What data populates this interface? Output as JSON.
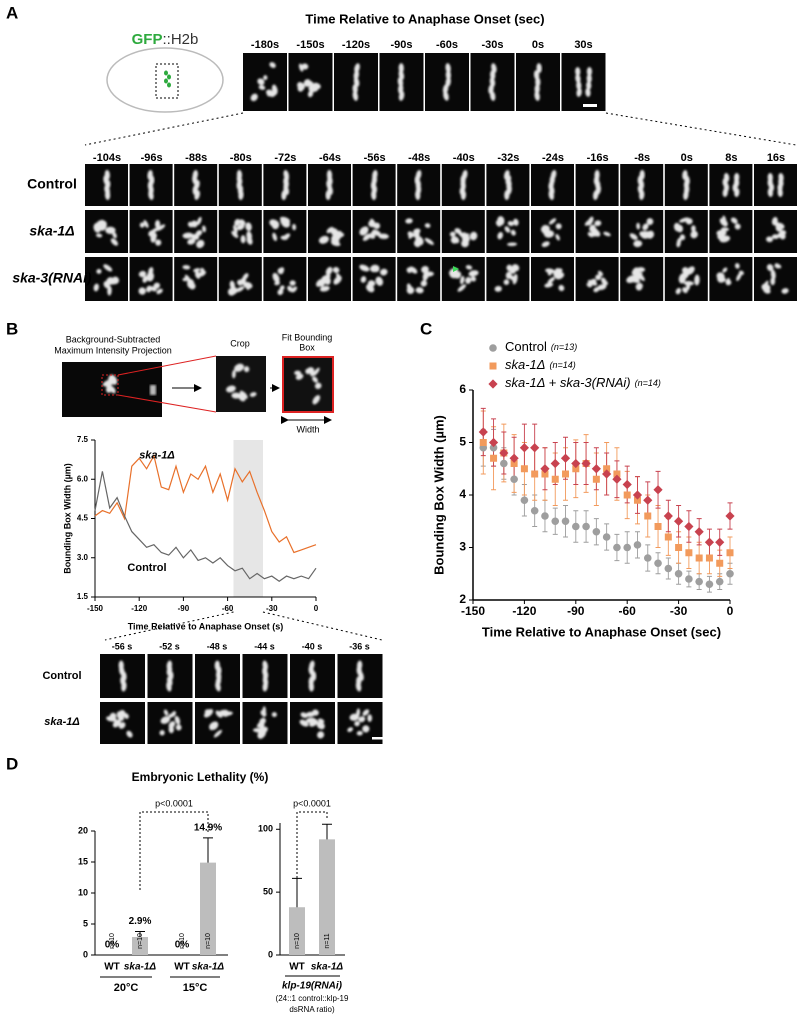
{
  "panel_a": {
    "label": "A",
    "reporter": {
      "gfp": "GFP",
      "rest": "::H2b"
    },
    "title": "Time Relative to Anaphase Onset (sec)",
    "top_times": [
      "-180s",
      "-150s",
      "-120s",
      "-90s",
      "-60s",
      "-30s",
      "0s",
      "30s"
    ],
    "bottom_times": [
      "-104s",
      "-96s",
      "-88s",
      "-80s",
      "-72s",
      "-64s",
      "-56s",
      "-48s",
      "-40s",
      "-32s",
      "-24s",
      "-16s",
      "-8s",
      "0s",
      "8s",
      "16s"
    ],
    "rows": [
      "Control",
      "ska-1Δ",
      "ska-3(RNAi)"
    ]
  },
  "panel_b": {
    "label": "B",
    "schematic": {
      "projection": [
        "Background-Subtracted",
        "Maximum Intensity Projection"
      ],
      "crop": "Crop",
      "fit": [
        "Fit Bounding",
        "Box"
      ],
      "width": "Width"
    },
    "chart_data": {
      "type": "line",
      "y_label": "Bounding Box Width (µm)",
      "x_label": "Time Relative to Anaphase Onset (s)",
      "xlim": [
        -150,
        0
      ],
      "xticks": [
        -150,
        -120,
        -90,
        -60,
        -30,
        0
      ],
      "ylim": [
        1.5,
        7.5
      ],
      "yticks": [
        {
          "value": 1.5,
          "label": "1.5"
        },
        {
          "value": 3,
          "label": "3.0"
        },
        {
          "value": 4.5,
          "label": "4.5"
        },
        {
          "value": 6,
          "label": "6.0"
        },
        {
          "value": 7.5,
          "label": "7.5"
        }
      ],
      "highlight": [
        -56,
        -36
      ],
      "x": [
        -150,
        -145,
        -140,
        -135,
        -130,
        -125,
        -120,
        -115,
        -110,
        -105,
        -100,
        -95,
        -90,
        -85,
        -80,
        -75,
        -70,
        -65,
        -60,
        -55,
        -50,
        -45,
        -40,
        -35,
        -30,
        -25,
        -20,
        -15,
        -10,
        -5,
        0
      ],
      "series": [
        {
          "name": "ska-1Δ",
          "color": "#e8702a",
          "values": [
            4.6,
            4.8,
            4.7,
            5.1,
            4.5,
            6.5,
            6.8,
            6.4,
            6.9,
            5.7,
            5.6,
            6.5,
            5.5,
            6.2,
            6.0,
            6.5,
            5.5,
            6.2,
            5.2,
            6.4,
            5.9,
            6.3,
            5.5,
            4.8,
            4.0,
            3.6,
            3.8,
            3.2,
            3.3,
            3.4,
            3.5
          ]
        },
        {
          "name": "Control",
          "color": "#666666",
          "values": [
            4.8,
            6.3,
            4.9,
            5.3,
            4.6,
            4.0,
            3.7,
            3.4,
            3.5,
            3.2,
            3.1,
            3.4,
            3.0,
            3.3,
            2.9,
            3.0,
            2.8,
            3.0,
            2.7,
            2.5,
            2.6,
            2.2,
            2.4,
            2.2,
            2.3,
            2.1,
            2.3,
            2.2,
            2.3,
            2.2,
            2.6
          ]
        }
      ]
    },
    "montage_times": [
      "-56 s",
      "-52 s",
      "-48 s",
      "-44 s",
      "-40 s",
      "-36 s"
    ],
    "montage_rows": [
      "Control",
      "ska-1Δ"
    ]
  },
  "panel_c": {
    "label": "C",
    "chart_data": {
      "type": "scatter",
      "y_label": "Bounding Box Width (µm)",
      "x_label": "Time Relative to Anaphase Onset (sec)",
      "xlim": [
        -150,
        0
      ],
      "xticks": [
        -150,
        -120,
        -90,
        -60,
        -30,
        0
      ],
      "ylim": [
        2,
        6
      ],
      "yticks": [
        2,
        3,
        4,
        5,
        6
      ],
      "x": [
        -144,
        -138,
        -132,
        -126,
        -120,
        -114,
        -108,
        -102,
        -96,
        -90,
        -84,
        -78,
        -72,
        -66,
        -60,
        -54,
        -48,
        -42,
        -36,
        -30,
        -24,
        -18,
        -12,
        -6,
        0
      ],
      "series": [
        {
          "name": "Control",
          "n": "(n=13)",
          "color": "#9e9e9e",
          "marker": "circle",
          "values": [
            4.9,
            4.9,
            4.6,
            4.3,
            3.9,
            3.7,
            3.6,
            3.5,
            3.5,
            3.4,
            3.4,
            3.3,
            3.2,
            3.0,
            3.0,
            3.05,
            2.8,
            2.7,
            2.6,
            2.5,
            2.4,
            2.35,
            2.3,
            2.35,
            2.5
          ],
          "errors": [
            0.35,
            0.35,
            0.3,
            0.3,
            0.3,
            0.3,
            0.3,
            0.25,
            0.3,
            0.3,
            0.3,
            0.25,
            0.25,
            0.25,
            0.3,
            0.25,
            0.25,
            0.2,
            0.2,
            0.2,
            0.15,
            0.15,
            0.15,
            0.15,
            0.2
          ]
        },
        {
          "name": "ska-1Δ",
          "n": "(n=14)",
          "color": "#f29a5c",
          "marker": "square",
          "values": [
            5.0,
            4.7,
            4.8,
            4.6,
            4.5,
            4.4,
            4.4,
            4.3,
            4.4,
            4.5,
            4.6,
            4.3,
            4.5,
            4.4,
            4.0,
            3.9,
            3.6,
            3.4,
            3.2,
            3.0,
            2.9,
            2.8,
            2.8,
            2.7,
            2.9
          ],
          "errors": [
            0.6,
            0.6,
            0.55,
            0.55,
            0.5,
            0.5,
            0.5,
            0.5,
            0.5,
            0.55,
            0.55,
            0.5,
            0.5,
            0.5,
            0.45,
            0.45,
            0.4,
            0.4,
            0.35,
            0.3,
            0.3,
            0.3,
            0.3,
            0.25,
            0.3
          ]
        },
        {
          "name": "ska-1Δ + ska-3(RNAi)",
          "n": "(n=14)",
          "color": "#c8424f",
          "marker": "diamond",
          "values": [
            5.2,
            5.0,
            4.8,
            4.7,
            4.9,
            4.9,
            4.5,
            4.6,
            4.7,
            4.6,
            4.6,
            4.5,
            4.4,
            4.3,
            4.2,
            4.0,
            3.9,
            4.1,
            3.6,
            3.5,
            3.4,
            3.3,
            3.1,
            3.1,
            3.6
          ],
          "errors": [
            0.45,
            0.45,
            0.4,
            0.4,
            0.45,
            0.45,
            0.4,
            0.4,
            0.4,
            0.4,
            0.4,
            0.4,
            0.4,
            0.35,
            0.35,
            0.35,
            0.35,
            0.35,
            0.3,
            0.3,
            0.3,
            0.25,
            0.25,
            0.25,
            0.25
          ]
        }
      ]
    }
  },
  "panel_d": {
    "label": "D",
    "title": "Embryonic Lethality (%)",
    "chart_data": [
      {
        "type": "bar",
        "color": "#bdbdbd",
        "categories": [
          "WT",
          "ska-1Δ",
          "WT",
          "ska-1Δ"
        ],
        "groups": [
          "20°C",
          "15°C"
        ],
        "values": [
          0,
          2.9,
          0,
          14.9
        ],
        "value_labels": [
          "0%",
          "2.9%",
          "0%",
          "14.9%"
        ],
        "errors": [
          null,
          0.9,
          null,
          4.0
        ],
        "n_labels": [
          "n=10",
          "n=10",
          "n=10",
          "n=10"
        ],
        "ylim": [
          0,
          20
        ],
        "yticks": [
          0,
          5,
          10,
          15,
          20
        ],
        "p_value": "p<0.0001"
      },
      {
        "type": "bar",
        "color": "#bdbdbd",
        "categories": [
          "WT",
          "ska-1Δ"
        ],
        "group": "klp-19(RNAi)",
        "note": [
          "(24::1 control::klp-19",
          "dsRNA ratio)"
        ],
        "values": [
          38,
          92
        ],
        "errors": [
          23,
          12
        ],
        "n_labels": [
          "n=10",
          "n=11"
        ],
        "ylim": [
          0,
          105
        ],
        "yticks": [
          0,
          50,
          100
        ],
        "p_value": "p<0.0001"
      }
    ]
  }
}
